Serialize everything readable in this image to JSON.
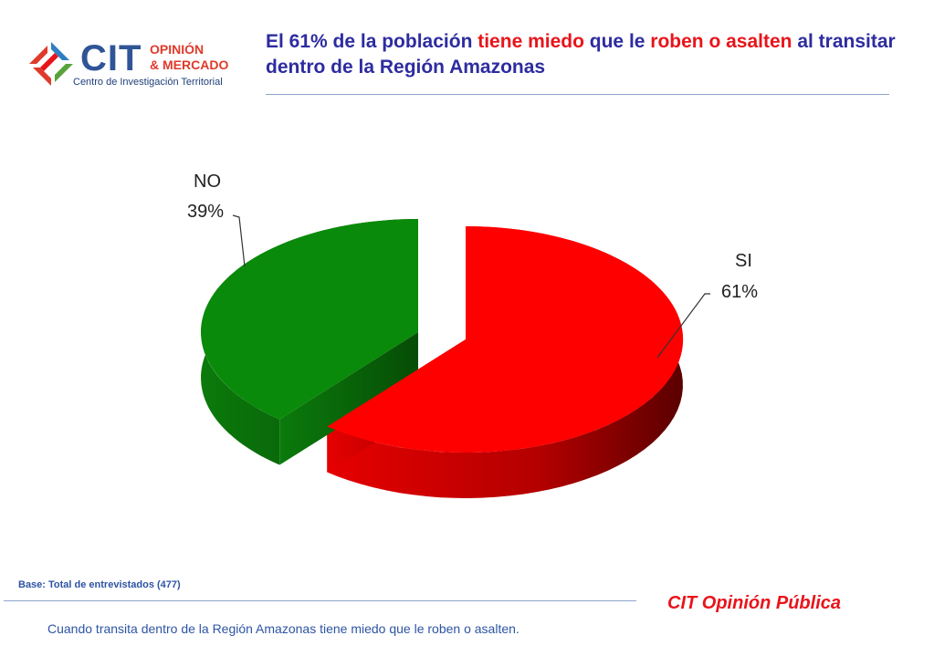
{
  "header": {
    "logo": {
      "brand": "CIT",
      "line1": "OPINIÓN",
      "line2": "& MERCADO",
      "subtitle": "Centro de Investigación Territorial"
    },
    "title_parts": [
      {
        "text": "El 61% de la población ",
        "highlight": false
      },
      {
        "text": "tiene miedo",
        "highlight": true
      },
      {
        "text": " que le ",
        "highlight": false
      },
      {
        "text": "roben o asalten",
        "highlight": true
      },
      {
        "text": " al transitar dentro de la Región Amazonas",
        "highlight": false
      }
    ]
  },
  "chart_data": {
    "type": "pie",
    "slices": [
      {
        "name": "SI",
        "value": 61,
        "label": "61%",
        "color": "#ff0000"
      },
      {
        "name": "NO",
        "value": 39,
        "label": "39%",
        "color": "#0a8a0a"
      }
    ],
    "unit": "%",
    "exploded": true,
    "three_d": true
  },
  "footer": {
    "base": "Base: Total de entrevistados (477)",
    "brand": "CIT Opinión Pública",
    "question": "Cuando transita dentro de la Región Amazonas tiene miedo que le roben o asalten."
  },
  "colors": {
    "title": "#2d2ca0",
    "highlight": "#e8141b",
    "footer_text": "#2d54a3"
  }
}
